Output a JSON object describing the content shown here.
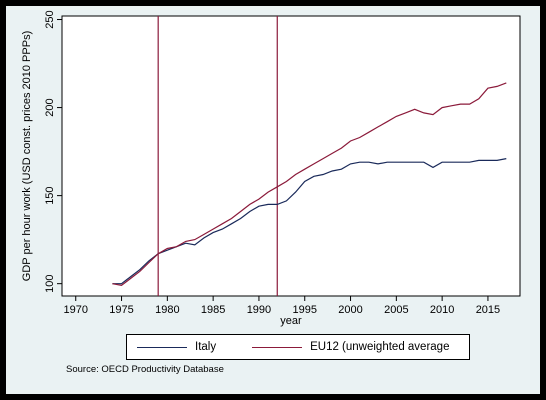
{
  "chart_data": {
    "type": "line",
    "ylabel": "GDP per hour work (USD const. prices 2010 PPPs)",
    "xlabel": "year",
    "xlim": [
      1968.5,
      2018.5
    ],
    "ylim": [
      93,
      252
    ],
    "xticks": [
      1970,
      1975,
      1980,
      1985,
      1990,
      1995,
      2000,
      2005,
      2010,
      2015
    ],
    "yticks": [
      100,
      150,
      200,
      250
    ],
    "vlines": [
      1979,
      1992
    ],
    "vline_color": "#8b1a3a",
    "grid": false,
    "legend_position": "bottom",
    "x": [
      1974,
      1975,
      1976,
      1977,
      1978,
      1979,
      1980,
      1981,
      1982,
      1983,
      1984,
      1985,
      1986,
      1987,
      1988,
      1989,
      1990,
      1991,
      1992,
      1993,
      1994,
      1995,
      1996,
      1997,
      1998,
      1999,
      2000,
      2001,
      2002,
      2003,
      2004,
      2005,
      2006,
      2007,
      2008,
      2009,
      2010,
      2011,
      2012,
      2013,
      2014,
      2015,
      2016,
      2017
    ],
    "series": [
      {
        "name": "Italy",
        "color": "#1a2a5a",
        "values": [
          100,
          100,
          104,
          108,
          113,
          117,
          119,
          121,
          123,
          122,
          126,
          129,
          131,
          134,
          137,
          141,
          144,
          145,
          145,
          147,
          152,
          158,
          161,
          162,
          164,
          165,
          168,
          169,
          169,
          168,
          169,
          169,
          169,
          169,
          169,
          166,
          169,
          169,
          169,
          169,
          170,
          170,
          170,
          171
        ]
      },
      {
        "name": "EU12 (unweighted average",
        "color": "#8b1a3a",
        "values": [
          100,
          99,
          103,
          107,
          112,
          117,
          120,
          121,
          124,
          125,
          128,
          131,
          134,
          137,
          141,
          145,
          148,
          152,
          155,
          158,
          162,
          165,
          168,
          171,
          174,
          177,
          181,
          183,
          186,
          189,
          192,
          195,
          197,
          199,
          197,
          196,
          200,
          201,
          202,
          202,
          205,
          211,
          212,
          214
        ]
      }
    ]
  },
  "source_note": "Source: OECD Productivity Database"
}
